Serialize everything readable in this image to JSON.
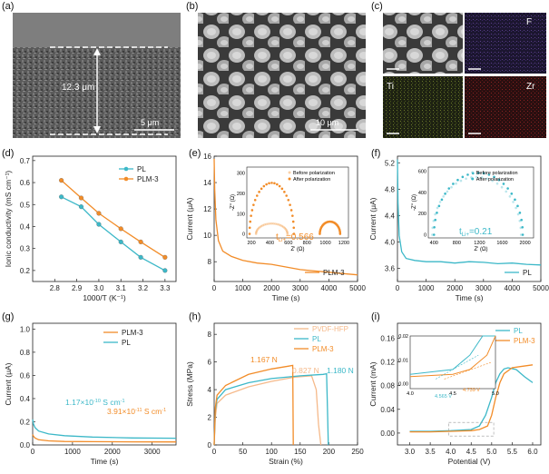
{
  "panels": {
    "a": {
      "letter": "(a)",
      "thickness_label": "12.3 μm",
      "scale_label": "5 μm"
    },
    "b": {
      "letter": "(b)",
      "scale_label": "10 μm"
    },
    "c": {
      "letter": "(c)",
      "maps": [
        "F",
        "Ti",
        "Zr"
      ]
    },
    "d": {
      "letter": "(d)"
    },
    "e": {
      "letter": "(e)",
      "inset_t": "t",
      "inset_sub": "Li+",
      "inset_val": "=0.566"
    },
    "f": {
      "letter": "(f)",
      "inset_t": "t",
      "inset_sub": "Li+",
      "inset_val": "=0.21"
    },
    "g": {
      "letter": "(g)",
      "ann_pl": "1.17×10",
      "ann_pl_exp": "-10",
      "ann_pl_unit": " S cm",
      "ann_pl_unit_exp": "-1",
      "ann_plm": "3.91×10",
      "ann_plm_exp": "-11",
      "ann_plm_unit": " S cm",
      "ann_plm_unit_exp": "-1"
    },
    "h": {
      "letter": "(h)",
      "ann_plm3": "1.167 N",
      "ann_pvdf": "0.827 N",
      "ann_pl": "1.180 N"
    },
    "i": {
      "letter": "(i)",
      "inset_ann_pl": "4.565 V",
      "inset_ann_plm": "4.739 V"
    }
  },
  "colors": {
    "PL": "#3cb8c8",
    "PLM3": "#f28c28",
    "PVDF": "#f5b98a"
  },
  "chart_data": [
    {
      "id": "d",
      "type": "line",
      "title": "",
      "xlabel": "1000/T (K⁻¹)",
      "ylabel": "Ionic conductivity (mS cm⁻¹)",
      "xlim": [
        2.7,
        3.35
      ],
      "ylim": [
        0.15,
        0.72
      ],
      "xticks": [
        "2.8",
        "2.9",
        "3.0",
        "3.1",
        "3.2",
        "3.3"
      ],
      "yticks": [
        "0.2",
        "0.3",
        "0.4",
        "0.5",
        "0.6",
        "0.7"
      ],
      "legend": [
        "PL",
        "PLM-3"
      ],
      "series": [
        {
          "name": "PL",
          "x": [
            2.83,
            2.92,
            3.0,
            3.1,
            3.19,
            3.3
          ],
          "y": [
            0.535,
            0.49,
            0.41,
            0.33,
            0.26,
            0.2
          ]
        },
        {
          "name": "PLM-3",
          "x": [
            2.83,
            2.92,
            3.0,
            3.1,
            3.19,
            3.3
          ],
          "y": [
            0.61,
            0.53,
            0.46,
            0.39,
            0.33,
            0.26
          ]
        }
      ]
    },
    {
      "id": "e",
      "type": "line",
      "xlabel": "Time (s)",
      "ylabel": "Current (μA)",
      "xlim": [
        0,
        5000
      ],
      "ylim": [
        6.5,
        16
      ],
      "xticks": [
        "0",
        "1000",
        "2000",
        "3000",
        "4000",
        "5000"
      ],
      "yticks": [
        "8",
        "10",
        "12",
        "14",
        "16"
      ],
      "legend": [
        "PLM-3"
      ],
      "series": [
        {
          "name": "PLM-3",
          "x": [
            0,
            20,
            60,
            150,
            300,
            600,
            1000,
            1500,
            2000,
            2500,
            3000,
            3500,
            4000,
            4500,
            5000
          ],
          "y": [
            15.8,
            13.5,
            11.2,
            9.6,
            8.8,
            8.4,
            8.1,
            7.9,
            7.8,
            7.6,
            7.4,
            7.3,
            7.2,
            7.1,
            7.0
          ]
        }
      ],
      "inset": {
        "xlabel": "Z' (Ω)",
        "ylabel": "-Z'' (Ω)",
        "xticks": [
          "200",
          "400",
          "600",
          "800",
          "1000",
          "1200"
        ],
        "yticks": [
          "0",
          "100",
          "200",
          "300"
        ],
        "legend": [
          "Before polarization",
          "After polarization"
        ]
      }
    },
    {
      "id": "f",
      "type": "line",
      "xlabel": "Time (s)",
      "ylabel": "Current (μA)",
      "xlim": [
        0,
        5000
      ],
      "ylim": [
        3.4,
        5.3
      ],
      "xticks": [
        "0",
        "1000",
        "2000",
        "3000",
        "4000",
        "5000"
      ],
      "yticks": [
        "3.6",
        "4.0",
        "4.4",
        "4.8",
        "5.2"
      ],
      "legend": [
        "PL"
      ],
      "series": [
        {
          "name": "PL",
          "x": [
            0,
            20,
            60,
            150,
            300,
            600,
            1000,
            1500,
            2000,
            2500,
            3000,
            3500,
            4000,
            4500,
            5000
          ],
          "y": [
            5.25,
            4.6,
            4.1,
            3.85,
            3.75,
            3.72,
            3.7,
            3.7,
            3.68,
            3.7,
            3.69,
            3.67,
            3.68,
            3.66,
            3.65
          ]
        }
      ],
      "inset": {
        "xlabel": "Z' (Ω)",
        "ylabel": "-Z'' (Ω)",
        "xticks": [
          "400",
          "800",
          "1200",
          "1600",
          "2000"
        ],
        "yticks": [
          "0",
          "200",
          "400",
          "600"
        ],
        "legend": [
          "Before polarization",
          "After polarization"
        ]
      }
    },
    {
      "id": "g",
      "type": "line",
      "xlabel": "Time (s)",
      "ylabel": "Current (μA)",
      "xlim": [
        0,
        3600
      ],
      "ylim": [
        0,
        1.05
      ],
      "xticks": [
        "0",
        "1000",
        "2000",
        "3000"
      ],
      "yticks": [
        "0.0",
        "0.2",
        "0.4",
        "0.6",
        "0.8",
        "1.0"
      ],
      "legend": [
        "PLM-3",
        "PL"
      ],
      "series": [
        {
          "name": "PLM-3",
          "x": [
            0,
            20,
            60,
            150,
            400,
            800,
            1500,
            2500,
            3600
          ],
          "y": [
            0.09,
            0.075,
            0.06,
            0.045,
            0.035,
            0.03,
            0.028,
            0.027,
            0.026
          ]
        },
        {
          "name": "PL",
          "x": [
            0,
            20,
            60,
            150,
            400,
            800,
            1500,
            2500,
            3600
          ],
          "y": [
            0.22,
            0.18,
            0.15,
            0.12,
            0.095,
            0.08,
            0.068,
            0.06,
            0.058
          ]
        }
      ]
    },
    {
      "id": "h",
      "type": "line",
      "xlabel": "Strain (%)",
      "ylabel": "Stress (MPa)",
      "xlim": [
        0,
        250
      ],
      "ylim": [
        0,
        8.8
      ],
      "xticks": [
        "0",
        "50",
        "100",
        "150",
        "200",
        "250"
      ],
      "yticks": [
        "0",
        "2",
        "4",
        "6",
        "8"
      ],
      "legend": [
        "PVDF-HFP",
        "PL",
        "PLM-3"
      ],
      "series": [
        {
          "name": "PVDF-HFP",
          "x": [
            0,
            2,
            5,
            20,
            60,
            100,
            140,
            170,
            178,
            182,
            186
          ],
          "y": [
            0,
            2.0,
            3.0,
            3.6,
            4.2,
            4.6,
            4.9,
            5.0,
            4.0,
            1.5,
            0
          ]
        },
        {
          "name": "PL",
          "x": [
            0,
            2,
            5,
            20,
            60,
            100,
            150,
            190,
            196,
            198,
            199
          ],
          "y": [
            0,
            2.5,
            3.3,
            4.0,
            4.5,
            4.8,
            5.0,
            5.1,
            5.15,
            2.0,
            0
          ]
        },
        {
          "name": "PLM-3",
          "x": [
            0,
            2,
            5,
            20,
            60,
            100,
            130,
            137,
            138
          ],
          "y": [
            0,
            2.7,
            3.6,
            4.3,
            5.1,
            5.5,
            5.7,
            5.75,
            0
          ]
        }
      ]
    },
    {
      "id": "i",
      "type": "line",
      "xlabel": "Potential (V)",
      "ylabel": "Current (mA)",
      "xlim": [
        2.7,
        6.2
      ],
      "ylim": [
        -0.02,
        0.185
      ],
      "xticks": [
        "3.0",
        "3.5",
        "4.0",
        "4.5",
        "5.0",
        "5.5",
        "6.0"
      ],
      "yticks": [
        "0.00",
        "0.04",
        "0.08",
        "0.12",
        "0.16"
      ],
      "legend": [
        "PL",
        "PLM-3"
      ],
      "series": [
        {
          "name": "PL",
          "x": [
            3.0,
            3.5,
            4.0,
            4.5,
            4.7,
            4.85,
            5.0,
            5.1,
            5.2,
            5.3,
            5.4,
            5.6,
            5.8,
            6.0
          ],
          "y": [
            0.003,
            0.003,
            0.004,
            0.006,
            0.012,
            0.03,
            0.06,
            0.085,
            0.1,
            0.108,
            0.11,
            0.107,
            0.095,
            0.085
          ]
        },
        {
          "name": "PLM-3",
          "x": [
            3.0,
            3.5,
            4.0,
            4.5,
            4.7,
            4.9,
            5.0,
            5.1,
            5.2,
            5.3,
            5.5,
            5.7,
            6.0
          ],
          "y": [
            0.002,
            0.002,
            0.003,
            0.004,
            0.006,
            0.012,
            0.03,
            0.06,
            0.085,
            0.1,
            0.11,
            0.112,
            0.115
          ]
        }
      ],
      "inset": {
        "xticks": [
          "4.0",
          "4.5",
          "5.0"
        ],
        "yticks": [
          "0.00",
          "0.01",
          "0.02"
        ]
      }
    }
  ]
}
